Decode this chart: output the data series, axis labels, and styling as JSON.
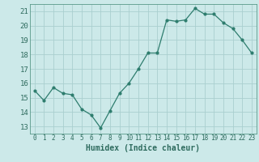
{
  "x": [
    0,
    1,
    2,
    3,
    4,
    5,
    6,
    7,
    8,
    9,
    10,
    11,
    12,
    13,
    14,
    15,
    16,
    17,
    18,
    19,
    20,
    21,
    22,
    23
  ],
  "y": [
    15.5,
    14.8,
    15.7,
    15.3,
    15.2,
    14.2,
    13.8,
    12.9,
    14.1,
    15.3,
    16.0,
    17.0,
    18.1,
    18.1,
    20.4,
    20.3,
    20.4,
    21.2,
    20.8,
    20.8,
    20.2,
    19.8,
    19.0,
    18.1
  ],
  "xlabel": "Humidex (Indice chaleur)",
  "ylim": [
    12.5,
    21.5
  ],
  "xlim": [
    -0.5,
    23.5
  ],
  "yticks": [
    13,
    14,
    15,
    16,
    17,
    18,
    19,
    20,
    21
  ],
  "xticks": [
    0,
    1,
    2,
    3,
    4,
    5,
    6,
    7,
    8,
    9,
    10,
    11,
    12,
    13,
    14,
    15,
    16,
    17,
    18,
    19,
    20,
    21,
    22,
    23
  ],
  "line_color": "#2e7d6e",
  "bg_color": "#cce9e9",
  "grid_color": "#aacfcf",
  "tick_label_color": "#2e6b5e",
  "axis_color": "#5a9a8a"
}
